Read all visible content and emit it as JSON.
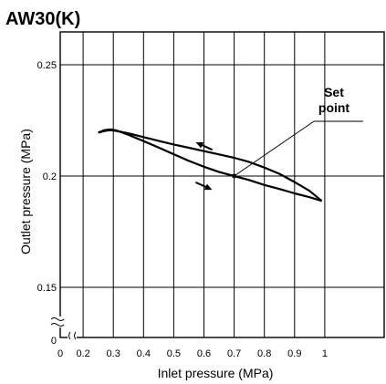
{
  "chart_data": {
    "type": "line",
    "title": "AW30(K)",
    "xlabel": "Inlet pressure (MPa)",
    "ylabel": "Outlet pressure (MPa)",
    "x_ticks": [
      "0",
      "0.2",
      "0.3",
      "0.4",
      "0.5",
      "0.6",
      "0.7",
      "0.8",
      "0.9",
      "1"
    ],
    "y_ticks": [
      "0",
      "0.15",
      "0.2",
      "0.25"
    ],
    "x_gridlines": [
      0.2,
      0.3,
      0.4,
      0.5,
      0.6,
      0.7,
      0.8,
      0.9,
      1.0
    ],
    "y_gridlines": [
      0.15,
      0.2,
      0.25
    ],
    "xlim": [
      0.1,
      1.1
    ],
    "ylim": [
      0.14,
      0.255
    ],
    "axis_breaks": true,
    "grid": true,
    "series": [
      {
        "x": [
          0.25,
          0.27,
          0.29,
          0.31,
          0.35,
          0.4,
          0.45,
          0.5,
          0.55,
          0.6,
          0.65,
          0.7,
          0.75,
          0.8,
          0.85,
          0.9,
          0.95,
          0.99
        ],
        "y": [
          0.2195,
          0.2202,
          0.2206,
          0.2203,
          0.2192,
          0.2175,
          0.2158,
          0.2142,
          0.2127,
          0.2112,
          0.2097,
          0.2082,
          0.2063,
          0.2038,
          0.201,
          0.1973,
          0.1933,
          0.1888
        ]
      },
      {
        "x": [
          0.25,
          0.27,
          0.29,
          0.31,
          0.35,
          0.4,
          0.45,
          0.5,
          0.55,
          0.6,
          0.65,
          0.7,
          0.75,
          0.8,
          0.85,
          0.9,
          0.95,
          0.99
        ],
        "y": [
          0.2195,
          0.2206,
          0.221,
          0.2205,
          0.2185,
          0.2157,
          0.2128,
          0.2098,
          0.2068,
          0.2042,
          0.2018,
          0.2,
          0.1982,
          0.196,
          0.1942,
          0.1922,
          0.1905,
          0.1888
        ]
      }
    ],
    "annotations": [
      {
        "text_lines": [
          "Set",
          "point"
        ],
        "x": 0.7,
        "y": 0.2
      }
    ],
    "arrows": [
      {
        "direction": "upper-left",
        "x": 0.6,
        "y": 0.2135
      },
      {
        "direction": "lower-right",
        "x": 0.6,
        "y": 0.1955
      }
    ]
  }
}
